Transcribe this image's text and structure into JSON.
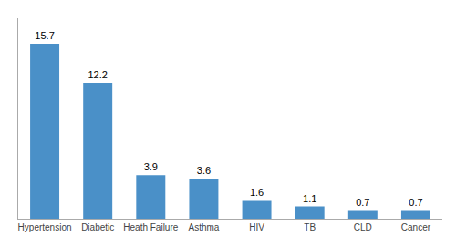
{
  "chart_data": {
    "type": "bar",
    "categories": [
      "Hypertension",
      "Diabetic",
      "Heath Failure",
      "Asthma",
      "HIV",
      "TB",
      "CLD",
      "Cancer"
    ],
    "values": [
      15.7,
      12.2,
      3.9,
      3.6,
      1.6,
      1.1,
      0.7,
      0.7
    ],
    "color": "#4a90c8",
    "ylim": [
      0,
      18.0
    ],
    "grid": false,
    "data_labels": true,
    "tick_labels": "x"
  }
}
